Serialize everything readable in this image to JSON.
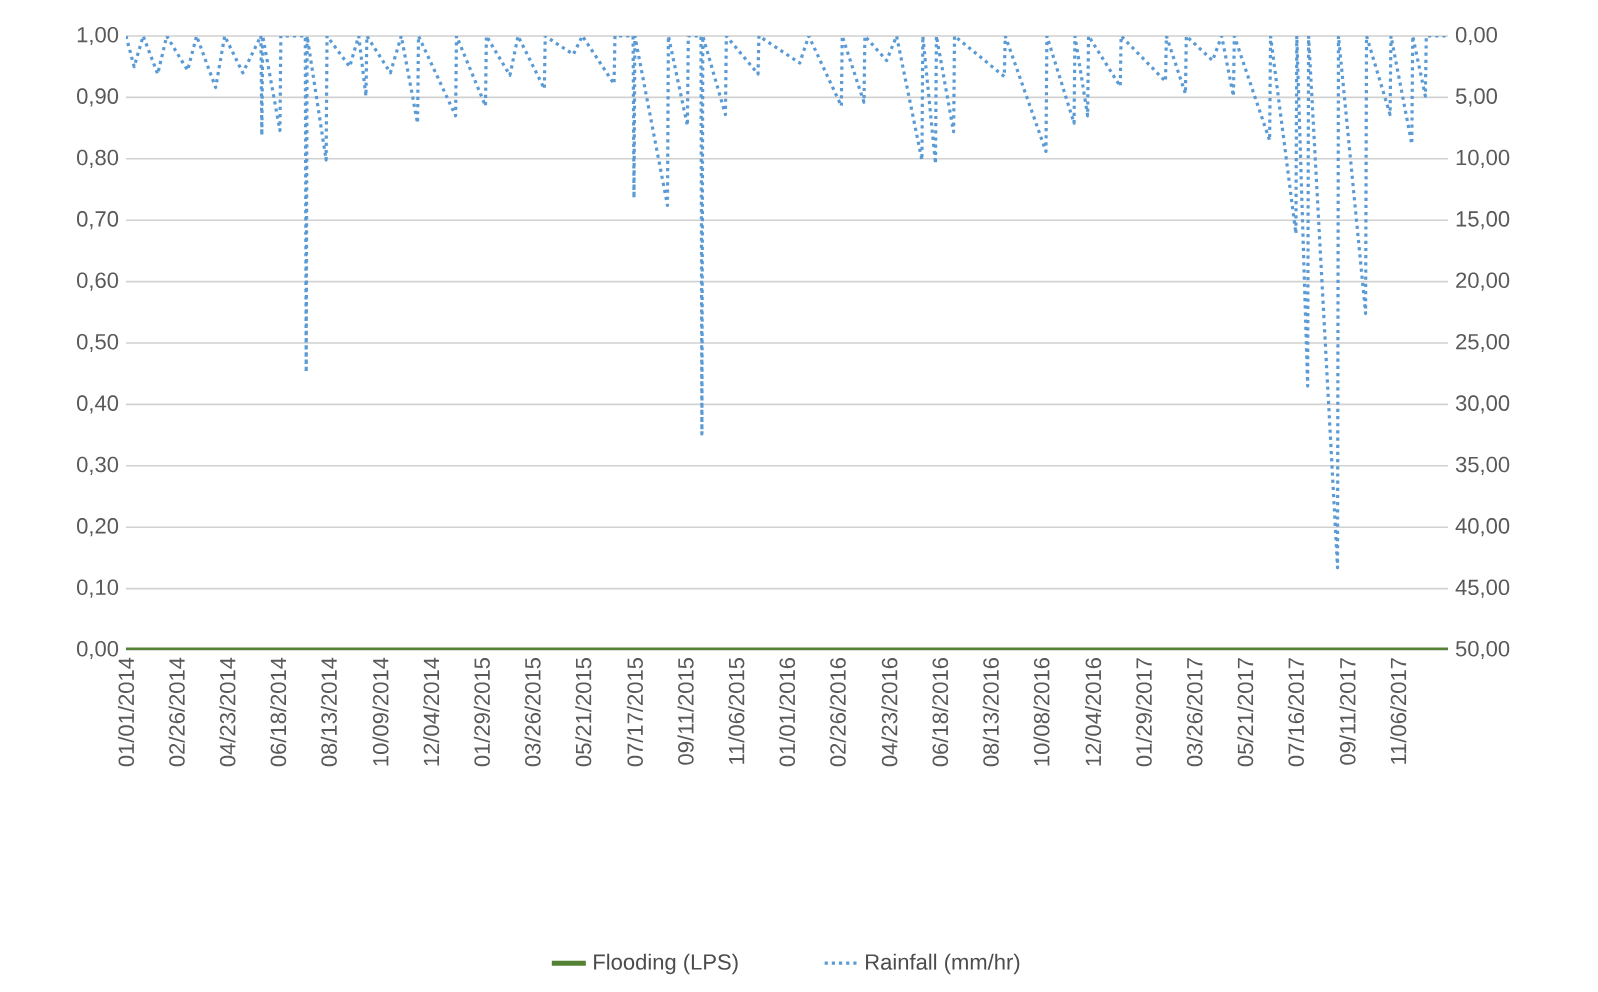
{
  "chart_data": {
    "type": "line",
    "xlim": [
      "2014-01-01",
      "2017-12-31"
    ],
    "xticks": [
      {
        "value": "2014-01-01",
        "label": "01/01/2014"
      },
      {
        "value": "2014-02-26",
        "label": "02/26/2014"
      },
      {
        "value": "2014-04-23",
        "label": "04/23/2014"
      },
      {
        "value": "2014-06-18",
        "label": "06/18/2014"
      },
      {
        "value": "2014-08-13",
        "label": "08/13/2014"
      },
      {
        "value": "2014-10-09",
        "label": "10/09/2014"
      },
      {
        "value": "2014-12-04",
        "label": "12/04/2014"
      },
      {
        "value": "2015-01-29",
        "label": "01/29/2015"
      },
      {
        "value": "2015-03-26",
        "label": "03/26/2015"
      },
      {
        "value": "2015-05-21",
        "label": "05/21/2015"
      },
      {
        "value": "2015-07-17",
        "label": "07/17/2015"
      },
      {
        "value": "2015-09-11",
        "label": "09/11/2015"
      },
      {
        "value": "2015-11-06",
        "label": "11/06/2015"
      },
      {
        "value": "2016-01-01",
        "label": "01/01/2016"
      },
      {
        "value": "2016-02-26",
        "label": "02/26/2016"
      },
      {
        "value": "2016-04-23",
        "label": "04/23/2016"
      },
      {
        "value": "2016-06-18",
        "label": "06/18/2016"
      },
      {
        "value": "2016-08-13",
        "label": "08/13/2016"
      },
      {
        "value": "2016-10-08",
        "label": "10/08/2016"
      },
      {
        "value": "2016-12-04",
        "label": "12/04/2016"
      },
      {
        "value": "2017-01-29",
        "label": "01/29/2017"
      },
      {
        "value": "2017-03-26",
        "label": "03/26/2017"
      },
      {
        "value": "2017-05-21",
        "label": "05/21/2017"
      },
      {
        "value": "2017-07-16",
        "label": "07/16/2017"
      },
      {
        "value": "2017-09-11",
        "label": "09/11/2017"
      },
      {
        "value": "2017-11-06",
        "label": "11/06/2017"
      }
    ],
    "ylim": [
      0,
      1
    ],
    "yticks": [
      {
        "value": 0,
        "label": "0,00"
      },
      {
        "value": 0.1,
        "label": "0,10"
      },
      {
        "value": 0.2,
        "label": "0,20"
      },
      {
        "value": 0.3,
        "label": "0,30"
      },
      {
        "value": 0.4,
        "label": "0,40"
      },
      {
        "value": 0.5,
        "label": "0,50"
      },
      {
        "value": 0.6,
        "label": "0,60"
      },
      {
        "value": 0.7,
        "label": "0,70"
      },
      {
        "value": 0.8,
        "label": "0,80"
      },
      {
        "value": 0.9,
        "label": "0,90"
      },
      {
        "value": 1,
        "label": "1,00"
      }
    ],
    "y2lim": [
      50,
      0
    ],
    "y2ticks": [
      {
        "value": 0,
        "label": "0,00"
      },
      {
        "value": 5,
        "label": "5,00"
      },
      {
        "value": 10,
        "label": "10,00"
      },
      {
        "value": 15,
        "label": "15,00"
      },
      {
        "value": 20,
        "label": "20,00"
      },
      {
        "value": 25,
        "label": "25,00"
      },
      {
        "value": 30,
        "label": "30,00"
      },
      {
        "value": 35,
        "label": "35,00"
      },
      {
        "value": 40,
        "label": "40,00"
      },
      {
        "value": 45,
        "label": "45,00"
      },
      {
        "value": 50,
        "label": "50,00"
      }
    ],
    "grid": "y",
    "legend": "bottom",
    "series": [
      {
        "name": "Flooding (LPS)",
        "color": "#548235",
        "line_style": "solid",
        "x": [
          "2014-01-01",
          "2017-12-31"
        ],
        "values": [
          0,
          0
        ]
      },
      {
        "name": "Rainfall (mm/hr)",
        "color": "#5b9bd5",
        "line_style": "dotted",
        "axis": "y2",
        "x": [
          "2014-01-01",
          "2014-01-10",
          "2014-01-20",
          "2014-02-05",
          "2014-02-15",
          "2014-03-10",
          "2014-03-20",
          "2014-04-10",
          "2014-04-20",
          "2014-05-10",
          "2014-05-30",
          "2014-05-31",
          "2014-06-01",
          "2014-06-20",
          "2014-06-21",
          "2014-07-18",
          "2014-07-19",
          "2014-07-20",
          "2014-08-10",
          "2014-08-11",
          "2014-09-05",
          "2014-09-15",
          "2014-09-23",
          "2014-09-24",
          "2014-10-20",
          "2014-11-01",
          "2014-11-19",
          "2014-11-20",
          "2014-12-31",
          "2015-01-01",
          "2015-02-02",
          "2015-02-03",
          "2015-03-01",
          "2015-03-10",
          "2015-04-08",
          "2015-04-09",
          "2015-05-10",
          "2015-05-20",
          "2015-06-24",
          "2015-06-25",
          "2015-07-15",
          "2015-07-16",
          "2015-07-17",
          "2015-08-22",
          "2015-08-23",
          "2015-09-13",
          "2015-09-14",
          "2015-09-28",
          "2015-09-29",
          "2015-09-30",
          "2015-10-25",
          "2015-10-26",
          "2015-11-30",
          "2015-12-01",
          "2016-01-15",
          "2016-01-25",
          "2016-03-01",
          "2016-03-02",
          "2016-03-26",
          "2016-03-27",
          "2016-04-20",
          "2016-05-01",
          "2016-05-29",
          "2016-05-30",
          "2016-06-13",
          "2016-06-14",
          "2016-07-03",
          "2016-07-04",
          "2016-08-28",
          "2016-08-29",
          "2016-10-13",
          "2016-10-14",
          "2016-11-13",
          "2016-11-14",
          "2016-11-28",
          "2016-11-29",
          "2017-01-03",
          "2017-01-04",
          "2017-02-22",
          "2017-02-23",
          "2017-03-16",
          "2017-03-17",
          "2017-04-15",
          "2017-04-25",
          "2017-05-08",
          "2017-05-09",
          "2017-06-17",
          "2017-06-18",
          "2017-07-16",
          "2017-07-17",
          "2017-07-29",
          "2017-07-30",
          "2017-08-31",
          "2017-09-01",
          "2017-10-01",
          "2017-10-02",
          "2017-10-28",
          "2017-10-29",
          "2017-11-21",
          "2017-11-22",
          "2017-12-06",
          "2017-12-07",
          "2017-12-31"
        ],
        "values": [
          0,
          2.5,
          0,
          3.1,
          0,
          2.8,
          0,
          4.2,
          0,
          3.0,
          0,
          8.1,
          0,
          7.7,
          0,
          0,
          27.4,
          0,
          10.1,
          0,
          2.5,
          0,
          4.9,
          0,
          3.0,
          0,
          7.1,
          0,
          6.5,
          0,
          5.7,
          0,
          3.2,
          0,
          4.3,
          0,
          1.5,
          0,
          3.9,
          0,
          0,
          13.2,
          0,
          13.8,
          0,
          7.3,
          0,
          0,
          32.4,
          0,
          6.4,
          0,
          3.1,
          0,
          2.2,
          0,
          5.7,
          0,
          5.4,
          0,
          2.0,
          0,
          10.1,
          0,
          10.4,
          0,
          7.8,
          0,
          3.3,
          0,
          9.4,
          0,
          7.1,
          0,
          6.5,
          0,
          4.1,
          0,
          3.7,
          0,
          4.7,
          0,
          2.0,
          0,
          4.9,
          0,
          8.5,
          0,
          16.1,
          0,
          28.5,
          0,
          43.3,
          0,
          22.6,
          0,
          6.4,
          0,
          8.8,
          0,
          4.9,
          0,
          0
        ]
      }
    ]
  }
}
